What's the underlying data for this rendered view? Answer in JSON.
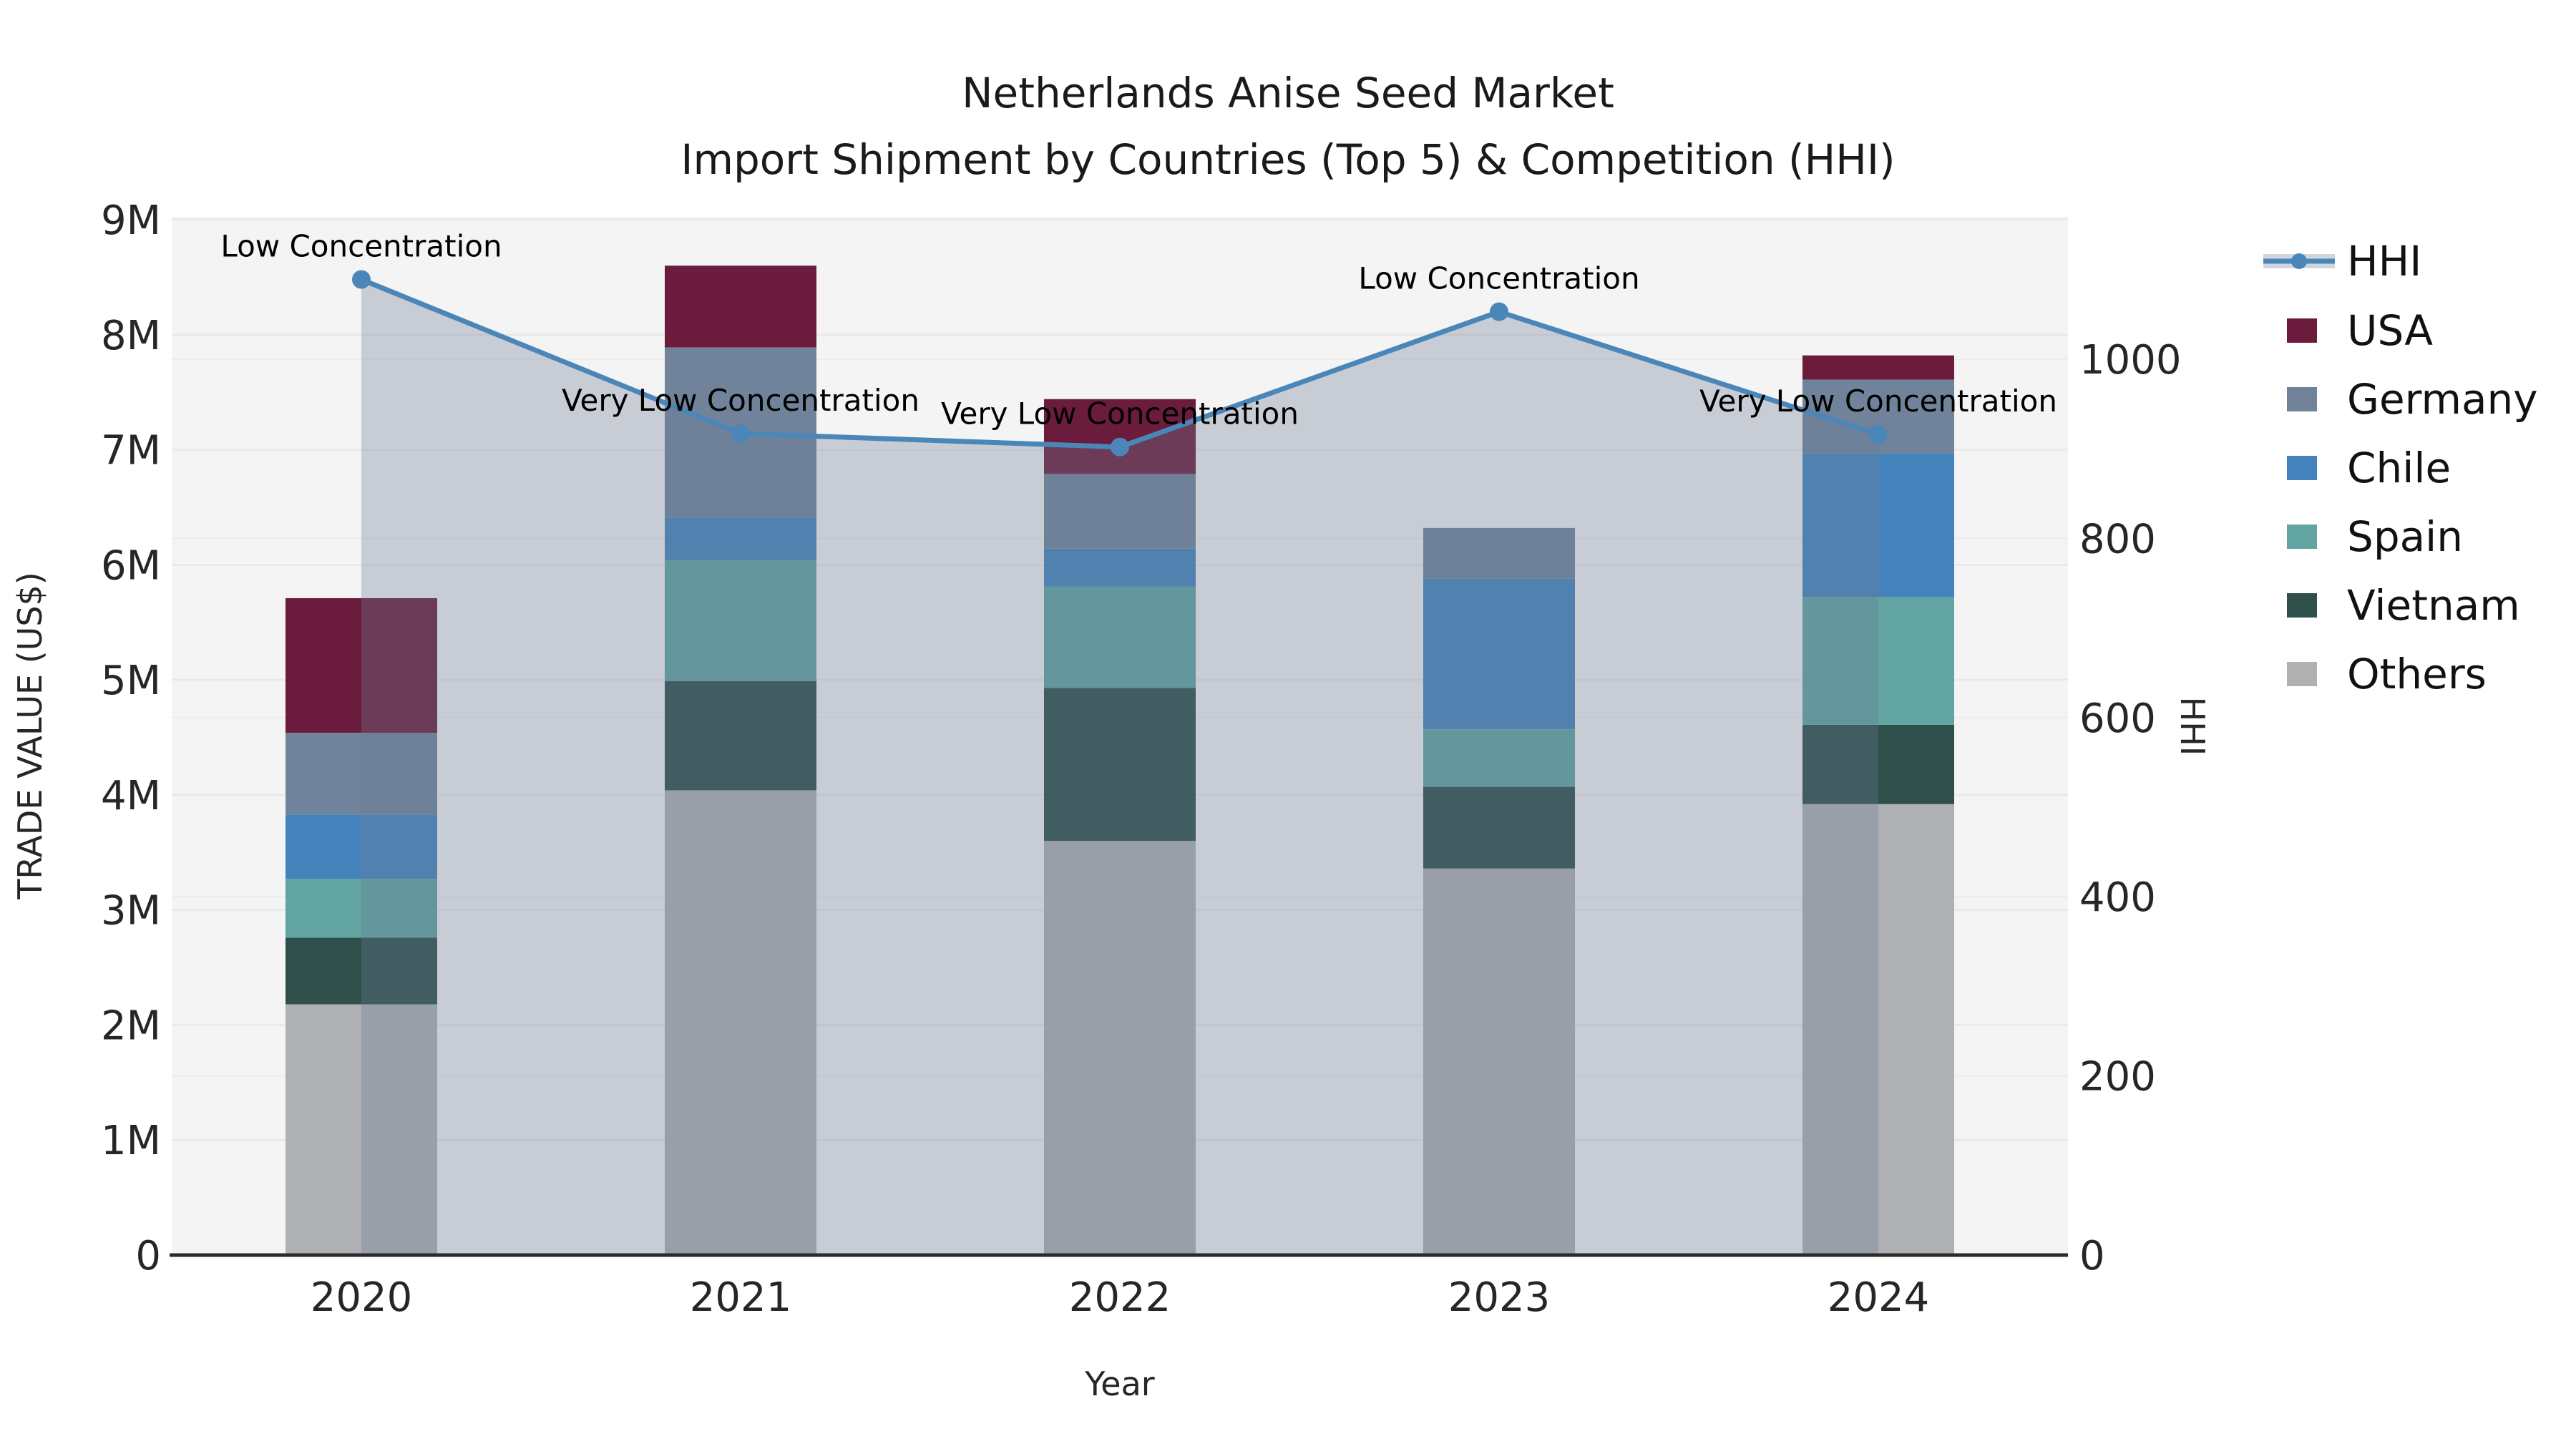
{
  "header": {
    "title_line1": "Netherlands Anise Seed Market",
    "title_line2": "Import Shipment by Countries (Top 5) & Competition (HHI)"
  },
  "axes": {
    "y_left_label": "TRADE VALUE (US$)",
    "y_right_label": "HHI",
    "x_label": "Year",
    "y_left_ticks": [
      "0",
      "1M",
      "2M",
      "3M",
      "4M",
      "5M",
      "6M",
      "7M",
      "8M",
      "9M"
    ],
    "y_right_ticks": [
      "0",
      "200",
      "400",
      "600",
      "800",
      "1000"
    ]
  },
  "colors": {
    "plot_background": "#f4f4f4",
    "grid_line": "#e8e8e8",
    "axis_line": "#2b2b2b",
    "hhi_line": "#4a86b8",
    "hhi_area_fill": "rgba(110,125,150,0.32)"
  },
  "legend": {
    "items": [
      {
        "label": "HHI",
        "type": "line",
        "color": "#4a86b8"
      },
      {
        "label": "USA",
        "type": "swatch",
        "color": "#6b1c3c"
      },
      {
        "label": "Germany",
        "type": "swatch",
        "color": "#71839a"
      },
      {
        "label": "Chile",
        "type": "swatch",
        "color": "#4483bb"
      },
      {
        "label": "Spain",
        "type": "swatch",
        "color": "#61a4a1"
      },
      {
        "label": "Vietnam",
        "type": "swatch",
        "color": "#2e4f4a"
      },
      {
        "label": "Others",
        "type": "swatch",
        "color": "#aeb0b1"
      }
    ]
  },
  "chart_data": {
    "type": "bar",
    "stacked": true,
    "categories": [
      "2020",
      "2021",
      "2022",
      "2023",
      "2024"
    ],
    "value_unit": "US$ millions",
    "series": [
      {
        "name": "Others",
        "color": "#aeb0b1",
        "values": [
          2.18,
          4.04,
          3.6,
          3.36,
          3.92
        ]
      },
      {
        "name": "Vietnam",
        "color": "#2e4f4a",
        "values": [
          0.58,
          0.95,
          1.33,
          0.71,
          0.69
        ]
      },
      {
        "name": "Spain",
        "color": "#61a4a1",
        "values": [
          0.51,
          1.05,
          0.88,
          0.5,
          1.11
        ]
      },
      {
        "name": "Chile",
        "color": "#4483bb",
        "values": [
          0.56,
          0.37,
          0.33,
          1.31,
          1.25
        ]
      },
      {
        "name": "Germany",
        "color": "#71839a",
        "values": [
          0.71,
          1.48,
          0.65,
          0.44,
          0.64
        ]
      },
      {
        "name": "USA",
        "color": "#6b1c3c",
        "values": [
          1.17,
          0.71,
          0.65,
          0.0,
          0.21
        ]
      }
    ],
    "line_series": {
      "name": "HHI",
      "axis": "right",
      "color": "#4a86b8",
      "values": [
        1089,
        917,
        902,
        1053,
        916
      ]
    },
    "title": "Netherlands Anise Seed Market — Import Shipment by Countries (Top 5) & Competition (HHI)",
    "xlabel": "Year",
    "ylabel": "TRADE VALUE (US$)",
    "ylabel_right": "HHI",
    "ylim": [
      0,
      9000000
    ],
    "ylim_right": [
      0,
      1160
    ],
    "grid": true,
    "legend_position": "right",
    "annotations": [
      {
        "category": "2020",
        "text": "Low Concentration"
      },
      {
        "category": "2021",
        "text": "Very Low Concentration"
      },
      {
        "category": "2022",
        "text": "Very Low Concentration"
      },
      {
        "category": "2023",
        "text": "Low Concentration"
      },
      {
        "category": "2024",
        "text": "Very Low Concentration"
      }
    ]
  }
}
